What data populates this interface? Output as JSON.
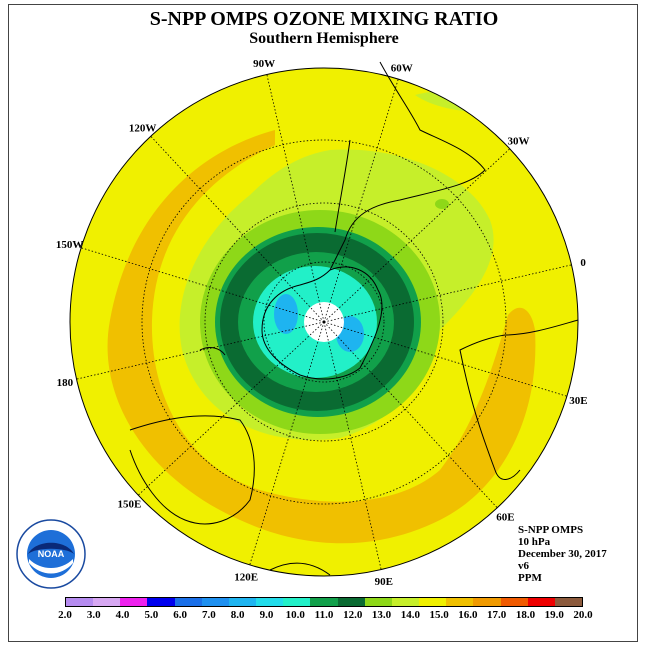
{
  "header": {
    "title": "S-NPP OMPS OZONE MIXING RATIO",
    "subtitle": "Southern Hemisphere"
  },
  "map": {
    "projection": "south-polar-stereographic",
    "longitude_labels": [
      "90W",
      "60W",
      "30W",
      "0",
      "30E",
      "60E",
      "90E",
      "120E",
      "150E",
      "180",
      "150W",
      "120W"
    ]
  },
  "info": {
    "instrument": "S-NPP OMPS",
    "level": "10 hPa",
    "date": "December 30, 2017",
    "version": "v6",
    "units": "PPM"
  },
  "logo": {
    "text": "NOAA",
    "ring_text": "NATIONAL OCEANIC AND ATMOSPHERIC ADMINISTRATION · U.S. DEPARTMENT OF COMMERCE"
  },
  "colorbar": {
    "labels": [
      "2.0",
      "3.0",
      "4.0",
      "5.0",
      "6.0",
      "7.0",
      "8.0",
      "9.0",
      "10.0",
      "11.0",
      "12.0",
      "13.0",
      "14.0",
      "15.0",
      "16.0",
      "17.0",
      "18.0",
      "19.0",
      "20.0"
    ],
    "colors": [
      "#b68cf0",
      "#d7a8f2",
      "#ee22ee",
      "#0000ee",
      "#1a6fe8",
      "#1e90f0",
      "#1eb4f0",
      "#22dcea",
      "#22f0c8",
      "#11a04a",
      "#0a6b32",
      "#8ed818",
      "#c6ef2a",
      "#f0f000",
      "#f0c000",
      "#f09a00",
      "#f05a00",
      "#ee0000",
      "#8c5a3c"
    ]
  },
  "palette": {
    "yellow": "#f0f000",
    "orange": "#f0c000",
    "light_green": "#c6ef2a",
    "green": "#8ed818",
    "dark_green": "#0a6b32",
    "mid_green": "#11a04a",
    "cyan": "#22f0c8",
    "light_blue": "#1eb4f0",
    "pole_white": "#ffffff"
  }
}
